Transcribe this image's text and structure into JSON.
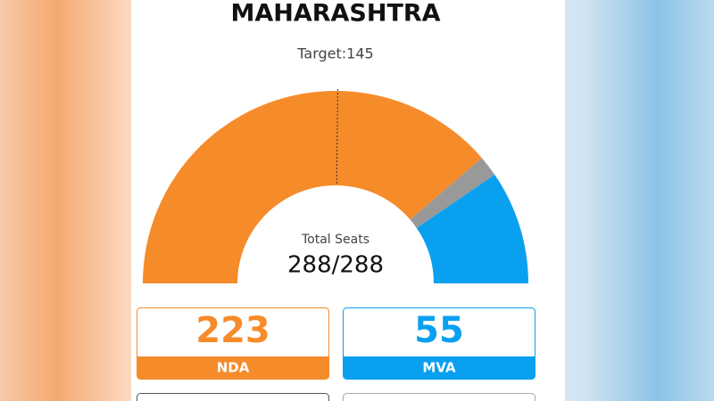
{
  "chart_data": {
    "type": "pie",
    "title": "MAHARASHTRA",
    "subtitle": "Target:145",
    "target": 145,
    "center_label": "Total Seats",
    "center_value": "288/288",
    "categories": [
      "NDA",
      null,
      "MVA"
    ],
    "values": [
      223,
      10,
      55
    ],
    "colors": [
      "#f68b2a",
      "#999999",
      "#0aa0f0"
    ]
  }
}
